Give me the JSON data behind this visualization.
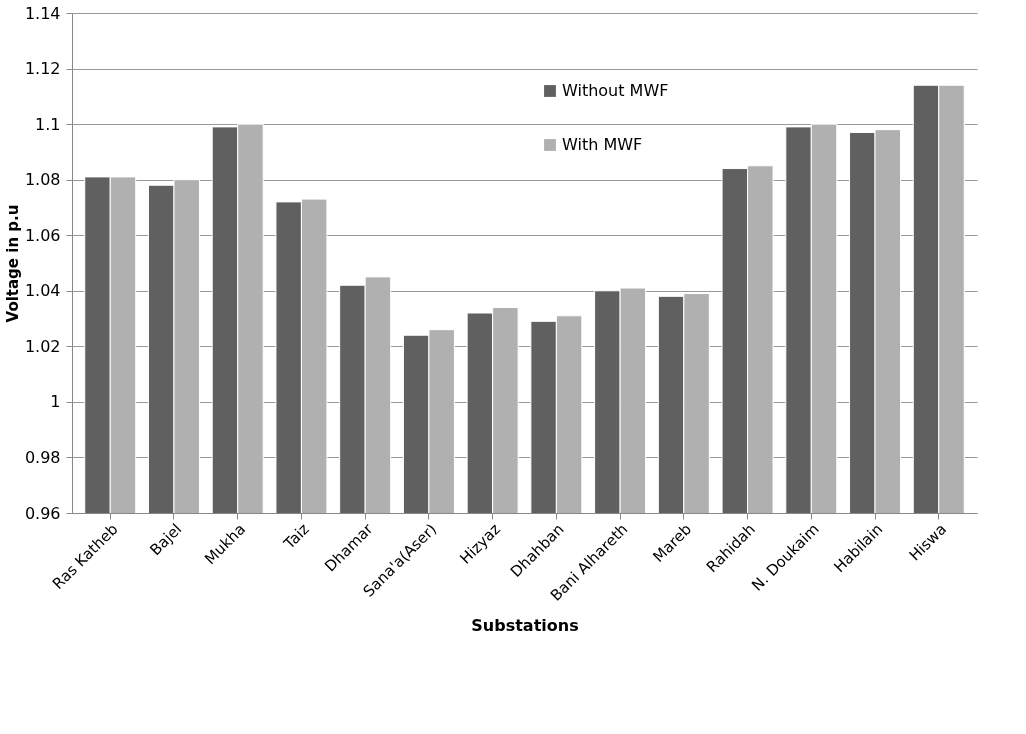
{
  "chart_data": {
    "type": "bar",
    "xlabel": "Substations",
    "ylabel": "Voltage in p.u",
    "categories": [
      "Ras Katheb",
      "Bajel",
      "Mukha",
      "Taiz",
      "Dhamar",
      "Sana'a(Aser)",
      "Hizyaz",
      "Dhahban",
      "Bani Alhareth",
      "Mareb",
      "Rahidah",
      "N. Doukaim",
      "Habilain",
      "Hiswa"
    ],
    "series": [
      {
        "name": "Without MWF",
        "color": "#606060",
        "values": [
          1.081,
          1.078,
          1.099,
          1.072,
          1.042,
          1.024,
          1.032,
          1.029,
          1.04,
          1.038,
          1.084,
          1.099,
          1.097,
          1.114
        ]
      },
      {
        "name": "With MWF",
        "color": "#b0b0b0",
        "values": [
          1.081,
          1.08,
          1.1,
          1.073,
          1.045,
          1.026,
          1.034,
          1.031,
          1.041,
          1.039,
          1.085,
          1.1,
          1.098,
          1.114
        ]
      }
    ],
    "ylim": [
      0.96,
      1.14
    ],
    "yticks": [
      {
        "value": 0.96,
        "label": "0.96"
      },
      {
        "value": 0.98,
        "label": "0.98"
      },
      {
        "value": 1,
        "label": "1"
      },
      {
        "value": 1.02,
        "label": "1.02"
      },
      {
        "value": 1.04,
        "label": "1.04"
      },
      {
        "value": 1.06,
        "label": "1.06"
      },
      {
        "value": 1.08,
        "label": "1.08"
      },
      {
        "value": 1.1,
        "label": "1.1"
      },
      {
        "value": 1.12,
        "label": "1.12"
      },
      {
        "value": 1.14,
        "label": "1.14"
      }
    ],
    "grid": "y",
    "legend": "top"
  }
}
